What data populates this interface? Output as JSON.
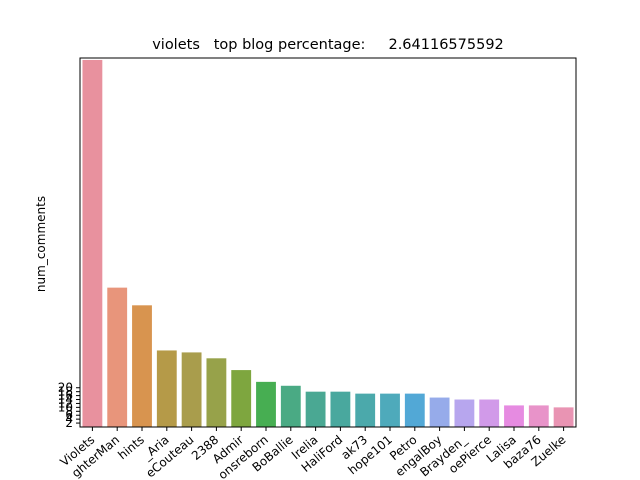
{
  "chart_data": {
    "type": "bar",
    "title": "violets   top blog percentage:     2.64116575592",
    "xlabel": "",
    "ylabel": "num_comments",
    "categories": [
      "Violets",
      "FighterMan",
      "hints",
      "_Aria",
      "LeCouteau",
      "2388",
      "Admir",
      "Lionsreborn",
      "BoBoBallie",
      "Irelia",
      "HaliFord",
      "ak73",
      "hope101",
      "Petro",
      "BengalBoy",
      "Brayden_",
      "JoePierce",
      "Lalisa",
      "baza76",
      "Zuelke"
    ],
    "visible_labels": [
      "Violets",
      "ghterMan",
      "hints",
      "_Aria",
      "eCouteau",
      "2388",
      "Admir",
      "onsreborn",
      "BoBallie",
      "Irelia",
      "HaliFord",
      "ak73",
      "hope101",
      "Petro",
      "engalBoy",
      "Brayden_",
      "oePierce",
      "Lalisa",
      "baza76",
      "Zuelke"
    ],
    "values": [
      187,
      71,
      62,
      39,
      38,
      35,
      29,
      23,
      21,
      18,
      18,
      17,
      17,
      17,
      15,
      14,
      14,
      11,
      11,
      10
    ],
    "colors": [
      "#e8919e",
      "#e8957b",
      "#d8944f",
      "#b59a48",
      "#a99d4c",
      "#97a24a",
      "#7ea63f",
      "#47ae52",
      "#4aaa84",
      "#4aa893",
      "#49a89e",
      "#4ba9ab",
      "#4eaabb",
      "#52a8d6",
      "#96abea",
      "#b7a6ee",
      "#d19ae9",
      "#e68be1",
      "#e893c9",
      "#e994b3"
    ],
    "ytick_labels": [
      "2",
      "4",
      "6",
      "8",
      "10",
      "12",
      "14",
      "16",
      "18",
      "20"
    ],
    "ylim": [
      0,
      188
    ],
    "grid": false,
    "legend": "none"
  }
}
